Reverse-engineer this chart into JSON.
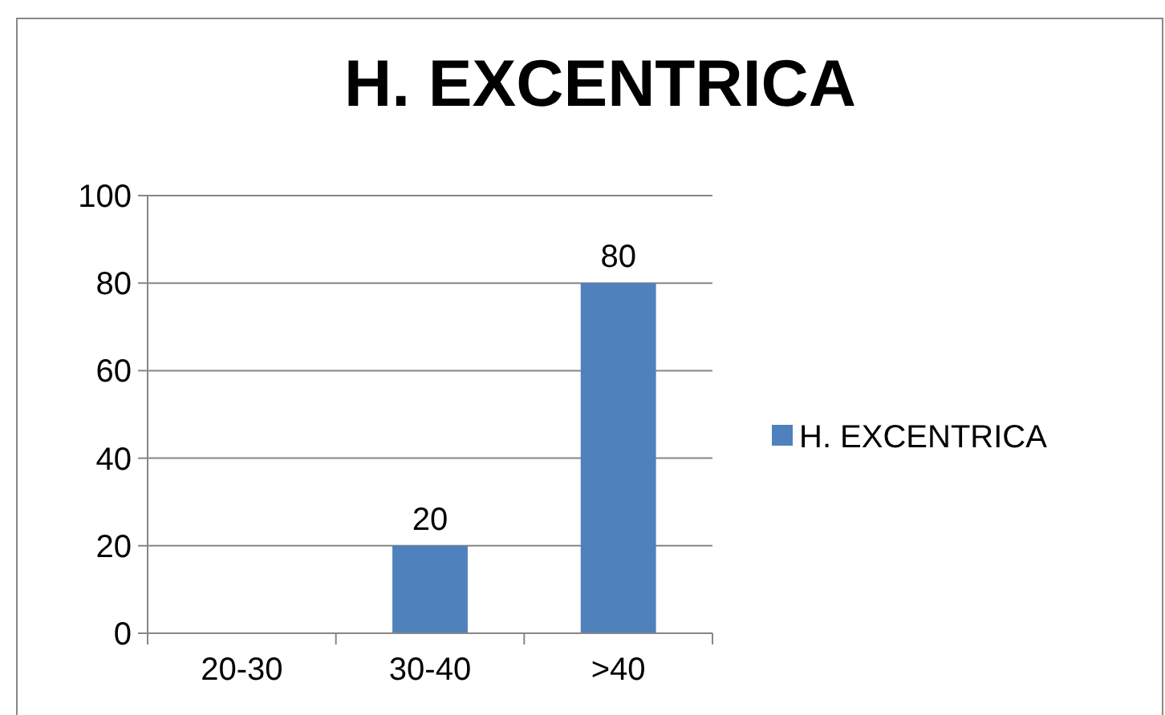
{
  "chart_data": {
    "type": "bar",
    "title": "H. EXCENTRICA",
    "categories": [
      "20-30",
      "30-40",
      ">40"
    ],
    "series": [
      {
        "name": "H. EXCENTRICA",
        "color": "#4f81bd",
        "values": [
          0,
          20,
          80
        ],
        "value_labels": [
          null,
          "20",
          "80"
        ]
      }
    ],
    "ylim": [
      0,
      100
    ],
    "yticks": [
      0,
      20,
      40,
      60,
      80,
      100
    ],
    "grid": "y",
    "legend": "right"
  }
}
